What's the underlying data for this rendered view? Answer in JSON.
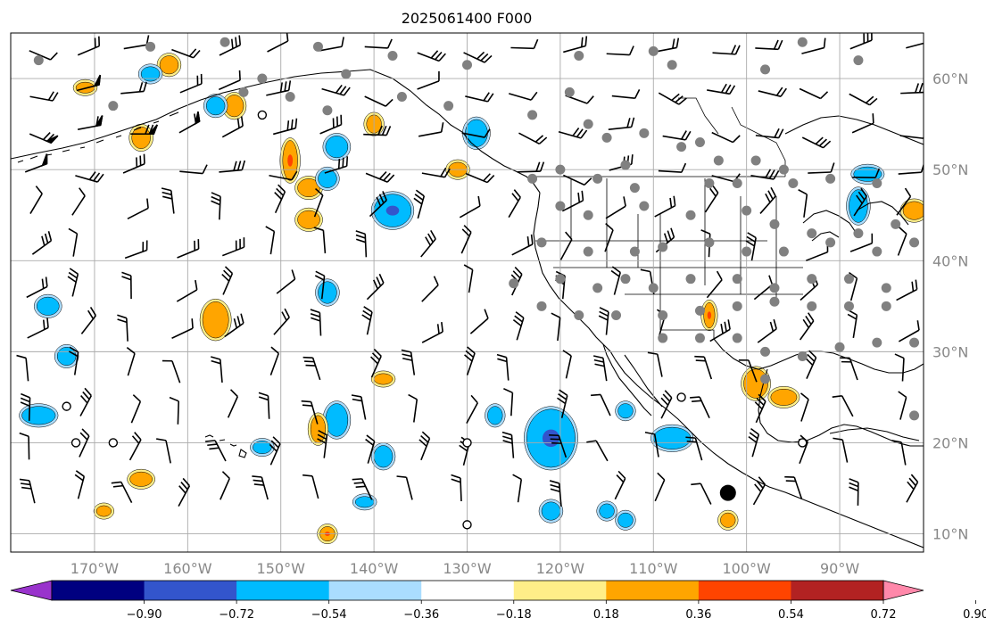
{
  "title": "2025061400 F000",
  "map": {
    "lon_range": [
      -179,
      -81
    ],
    "lat_range": [
      8,
      65
    ],
    "lat_ticks": [
      {
        "value": 60,
        "label": "60°N"
      },
      {
        "value": 50,
        "label": "50°N"
      },
      {
        "value": 40,
        "label": "40°N"
      },
      {
        "value": 30,
        "label": "30°N"
      },
      {
        "value": 20,
        "label": "20°N"
      },
      {
        "value": 10,
        "label": "10°N"
      }
    ],
    "lon_ticks": [
      {
        "value": -170,
        "label": "170°W"
      },
      {
        "value": -160,
        "label": "160°W"
      },
      {
        "value": -150,
        "label": "150°W"
      },
      {
        "value": -140,
        "label": "140°W"
      },
      {
        "value": -130,
        "label": "130°W"
      },
      {
        "value": -120,
        "label": "120°W"
      },
      {
        "value": -110,
        "label": "110°W"
      },
      {
        "value": -100,
        "label": "100°W"
      },
      {
        "value": -90,
        "label": "90°W"
      }
    ],
    "grid": true,
    "colors": {
      "grid": "#aaaaaa",
      "coast": "#000000",
      "station_gray": "#808080"
    }
  },
  "colorbar": {
    "levels": [
      "−0.90",
      "−0.72",
      "−0.54",
      "−0.36",
      "−0.18",
      "0.18",
      "0.36",
      "0.54",
      "0.72",
      "0.90"
    ],
    "colors": [
      "#9933cc",
      "#000080",
      "#3355cc",
      "#00bbff",
      "#aaddff",
      "#ffffff",
      "#ffee88",
      "#ffa500",
      "#ff4400",
      "#b22222",
      "#ff88aa"
    ],
    "extend": "both"
  },
  "contours": [
    {
      "lon": -121,
      "lat": 20.5,
      "rx": 2.6,
      "ry": 3.2,
      "level": "neg2"
    },
    {
      "lon": -138,
      "lat": 45.5,
      "rx": 2.0,
      "ry": 1.8,
      "level": "neg2"
    },
    {
      "lon": -149,
      "lat": 51,
      "rx": 0.8,
      "ry": 2.2,
      "level": "pos3"
    },
    {
      "lon": -104,
      "lat": 34,
      "rx": 0.6,
      "ry": 1.4,
      "level": "pos3"
    },
    {
      "lon": -99,
      "lat": 26.5,
      "rx": 1.3,
      "ry": 1.6,
      "level": "pos1"
    },
    {
      "lon": -96,
      "lat": 25,
      "rx": 1.4,
      "ry": 0.9,
      "level": "pos1"
    },
    {
      "lon": -108,
      "lat": 20.5,
      "rx": 2.0,
      "ry": 1.2,
      "level": "neg1"
    },
    {
      "lon": -157,
      "lat": 33.5,
      "rx": 1.4,
      "ry": 2.0,
      "level": "pos1"
    },
    {
      "lon": -147,
      "lat": 48,
      "rx": 1.2,
      "ry": 1.0,
      "level": "pos1"
    },
    {
      "lon": -147,
      "lat": 44.5,
      "rx": 1.2,
      "ry": 1.0,
      "level": "pos1"
    },
    {
      "lon": -165,
      "lat": 53.5,
      "rx": 1.0,
      "ry": 1.2,
      "level": "pos1"
    },
    {
      "lon": -155,
      "lat": 57,
      "rx": 1.0,
      "ry": 1.2,
      "level": "pos1"
    },
    {
      "lon": -171,
      "lat": 59,
      "rx": 1.0,
      "ry": 0.6,
      "level": "pos1"
    },
    {
      "lon": -162,
      "lat": 61.5,
      "rx": 1.0,
      "ry": 1.0,
      "level": "pos1"
    },
    {
      "lon": -152,
      "lat": 19.5,
      "rx": 1.0,
      "ry": 0.7,
      "level": "neg1"
    },
    {
      "lon": -176,
      "lat": 23,
      "rx": 1.8,
      "ry": 1.0,
      "level": "neg1"
    },
    {
      "lon": -144,
      "lat": 22.5,
      "rx": 1.2,
      "ry": 1.8,
      "level": "neg1"
    },
    {
      "lon": -146,
      "lat": 21.5,
      "rx": 0.8,
      "ry": 1.5,
      "level": "pos1"
    },
    {
      "lon": -165,
      "lat": 16,
      "rx": 1.2,
      "ry": 0.8,
      "level": "pos1"
    },
    {
      "lon": -175,
      "lat": 35,
      "rx": 1.2,
      "ry": 1.0,
      "level": "neg1"
    },
    {
      "lon": -173,
      "lat": 29.5,
      "rx": 1.0,
      "ry": 1.0,
      "level": "neg1"
    },
    {
      "lon": -145,
      "lat": 36.5,
      "rx": 1.0,
      "ry": 1.2,
      "level": "neg1"
    },
    {
      "lon": -144,
      "lat": 52.5,
      "rx": 1.2,
      "ry": 1.2,
      "level": "neg1"
    },
    {
      "lon": -145,
      "lat": 49,
      "rx": 1.0,
      "ry": 1.0,
      "level": "neg1"
    },
    {
      "lon": -121,
      "lat": 12.5,
      "rx": 1.0,
      "ry": 1.0,
      "level": "neg1"
    },
    {
      "lon": -139,
      "lat": 18.5,
      "rx": 1.0,
      "ry": 1.2,
      "level": "neg1"
    },
    {
      "lon": -127,
      "lat": 23,
      "rx": 0.8,
      "ry": 1.0,
      "level": "neg1"
    },
    {
      "lon": -145,
      "lat": 10,
      "rx": 0.8,
      "ry": 0.8,
      "level": "pos3"
    },
    {
      "lon": -129,
      "lat": 54,
      "rx": 1.2,
      "ry": 1.5,
      "level": "neg1"
    },
    {
      "lon": -88,
      "lat": 46,
      "rx": 1.0,
      "ry": 1.8,
      "level": "neg1"
    },
    {
      "lon": -82,
      "lat": 45.5,
      "rx": 1.2,
      "ry": 1.0,
      "level": "pos1"
    },
    {
      "lon": -87,
      "lat": 49.5,
      "rx": 1.5,
      "ry": 0.8,
      "level": "neg1"
    },
    {
      "lon": -131,
      "lat": 50,
      "rx": 1.0,
      "ry": 0.8,
      "level": "pos1"
    },
    {
      "lon": -140,
      "lat": 55,
      "rx": 0.8,
      "ry": 1.0,
      "level": "pos1"
    },
    {
      "lon": -157,
      "lat": 57,
      "rx": 1.0,
      "ry": 1.0,
      "level": "neg1"
    },
    {
      "lon": -164,
      "lat": 60.5,
      "rx": 1.0,
      "ry": 0.8,
      "level": "neg1"
    },
    {
      "lon": -169,
      "lat": 12.5,
      "rx": 0.8,
      "ry": 0.6,
      "level": "pos1"
    },
    {
      "lon": -113,
      "lat": 11.5,
      "rx": 0.8,
      "ry": 0.8,
      "level": "neg1"
    },
    {
      "lon": -115,
      "lat": 12.5,
      "rx": 0.8,
      "ry": 0.8,
      "level": "neg1"
    },
    {
      "lon": -141,
      "lat": 13.5,
      "rx": 1.0,
      "ry": 0.6,
      "level": "neg1"
    },
    {
      "lon": -102,
      "lat": 11.5,
      "rx": 0.8,
      "ry": 0.8,
      "level": "pos1"
    },
    {
      "lon": -113,
      "lat": 23.5,
      "rx": 0.8,
      "ry": 0.8,
      "level": "neg1"
    },
    {
      "lon": -139,
      "lat": 27,
      "rx": 1.0,
      "ry": 0.6,
      "level": "pos1"
    }
  ],
  "stations_gray": [
    [
      -119,
      58.5
    ],
    [
      -123,
      56
    ],
    [
      -117,
      55
    ],
    [
      -115,
      53.5
    ],
    [
      -111,
      54
    ],
    [
      -105,
      53
    ],
    [
      -107,
      52.5
    ],
    [
      -103,
      51
    ],
    [
      -99,
      51
    ],
    [
      -96,
      50
    ],
    [
      -113,
      50.5
    ],
    [
      -120,
      50
    ],
    [
      -123,
      49
    ],
    [
      -116,
      49
    ],
    [
      -112,
      48
    ],
    [
      -104,
      48.5
    ],
    [
      -101,
      48.5
    ],
    [
      -95,
      48.5
    ],
    [
      -91,
      49
    ],
    [
      -86,
      48.5
    ],
    [
      -120,
      46
    ],
    [
      -117,
      45
    ],
    [
      -111,
      46
    ],
    [
      -106,
      45
    ],
    [
      -100,
      45.5
    ],
    [
      -97,
      44
    ],
    [
      -93,
      43
    ],
    [
      -88,
      43
    ],
    [
      -84,
      44
    ],
    [
      -122,
      42
    ],
    [
      -117,
      41
    ],
    [
      -112,
      41
    ],
    [
      -109,
      41.5
    ],
    [
      -104,
      42
    ],
    [
      -100,
      41
    ],
    [
      -96,
      41
    ],
    [
      -91,
      42
    ],
    [
      -86,
      41
    ],
    [
      -82,
      42
    ],
    [
      -125,
      37.5
    ],
    [
      -120,
      38
    ],
    [
      -116,
      37
    ],
    [
      -113,
      38
    ],
    [
      -110,
      37
    ],
    [
      -106,
      38
    ],
    [
      -101,
      38
    ],
    [
      -97,
      37
    ],
    [
      -93,
      38
    ],
    [
      -89,
      38
    ],
    [
      -85,
      37
    ],
    [
      -122,
      35
    ],
    [
      -118,
      34
    ],
    [
      -114,
      34
    ],
    [
      -109,
      34
    ],
    [
      -105,
      34.5
    ],
    [
      -101,
      35
    ],
    [
      -97,
      35.5
    ],
    [
      -93,
      35
    ],
    [
      -89,
      35
    ],
    [
      -85,
      35
    ],
    [
      -109,
      31.5
    ],
    [
      -105,
      31.5
    ],
    [
      -101,
      31.5
    ],
    [
      -98,
      30
    ],
    [
      -94,
      29.5
    ],
    [
      -90,
      30.5
    ],
    [
      -86,
      31
    ],
    [
      -82,
      31
    ],
    [
      -98,
      27
    ],
    [
      -82,
      23
    ],
    [
      -176,
      62
    ],
    [
      -164,
      63.5
    ],
    [
      -156,
      64
    ],
    [
      -146,
      63.5
    ],
    [
      -138,
      62.5
    ],
    [
      -130,
      61.5
    ],
    [
      -118,
      62.5
    ],
    [
      -108,
      61.5
    ],
    [
      -98,
      61
    ],
    [
      -88,
      62
    ],
    [
      -168,
      57
    ],
    [
      -154,
      58.5
    ],
    [
      -149,
      58
    ],
    [
      -145,
      56.5
    ],
    [
      -143,
      60.5
    ],
    [
      -137,
      58
    ],
    [
      -132,
      57
    ],
    [
      -152,
      60
    ],
    [
      -110,
      63
    ],
    [
      -94,
      64
    ]
  ],
  "stations_open": [
    [
      -152,
      56
    ],
    [
      -172,
      20
    ],
    [
      -168,
      20
    ],
    [
      -173,
      24
    ],
    [
      -130,
      20
    ],
    [
      -130,
      11
    ],
    [
      -107,
      25
    ],
    [
      -94,
      20
    ]
  ],
  "stations_filled": [
    [
      -102,
      14.5
    ]
  ]
}
